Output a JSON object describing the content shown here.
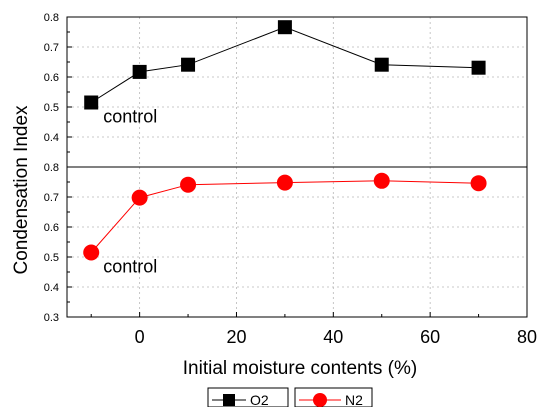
{
  "chart_data": {
    "type": "line",
    "xlabel": "Initial moisture contents (%)",
    "ylabel": "Condensation Index",
    "x_ticks": [
      "0",
      "20",
      "40",
      "60",
      "80"
    ],
    "xlim": [
      -15,
      80
    ],
    "panels": [
      {
        "id": "top",
        "ylim": [
          0.3,
          0.8
        ],
        "y_ticks": [
          "0.4",
          "0.5",
          "0.6",
          "0.7",
          "0.8"
        ],
        "annotation": "control",
        "series": {
          "name": "O2",
          "color": "#000000",
          "marker": "square",
          "x": [
            -10,
            0,
            10,
            30,
            50,
            70
          ],
          "y": [
            0.515,
            0.617,
            0.641,
            0.766,
            0.641,
            0.631
          ]
        }
      },
      {
        "id": "bottom",
        "ylim": [
          0.3,
          0.8
        ],
        "y_ticks": [
          "0.3",
          "0.4",
          "0.5",
          "0.6",
          "0.7",
          "0.8"
        ],
        "annotation": "control",
        "series": {
          "name": "N2",
          "color": "#ff0000",
          "marker": "circle",
          "x": [
            -10,
            0,
            10,
            30,
            50,
            70
          ],
          "y": [
            0.515,
            0.698,
            0.741,
            0.748,
            0.754,
            0.746
          ]
        }
      }
    ],
    "grid": true,
    "legend": {
      "placement": "bottom-center",
      "entries": [
        "O2",
        "N2"
      ]
    }
  }
}
